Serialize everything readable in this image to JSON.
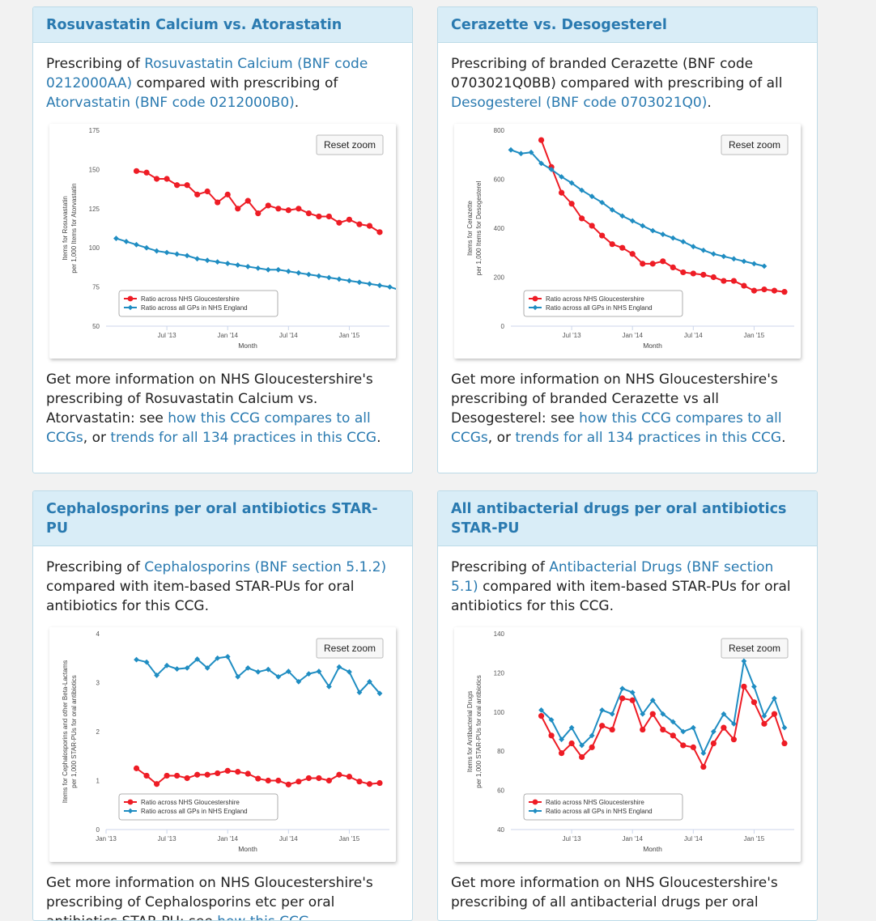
{
  "colors": {
    "ccg": "#ee1c25",
    "eng": "#1f8dc2",
    "accent": "#2a7ab0"
  },
  "panels": [
    {
      "title": "Rosuvastatin Calcium vs. Atorastatin",
      "desc": {
        "pre": "Prescribing of ",
        "link1": "Rosuvastatin Calcium (BNF code 0212000AA)",
        "mid": " compared with prescribing of ",
        "link2": "Atorvastatin (BNF code 0212000B0)",
        "post": "."
      },
      "more": {
        "pre": "Get more information on NHS Gloucestershire's prescribing of Rosuvastatin Calcium vs. Atorvastatin: see ",
        "link1": "how this CCG compares to all CCGs",
        "mid": ", or ",
        "link2": "trends for all 134 practices in this CCG",
        "post": "."
      },
      "reset_label": "Reset zoom"
    },
    {
      "title": "Cerazette vs. Desogesterel",
      "desc": {
        "pre": "Prescribing of branded Cerazette (BNF code 0703021Q0BB) compared with prescribing of all ",
        "link1": "Desogesterel (BNF code 0703021Q0)",
        "mid": ".",
        "link2": "",
        "post": ""
      },
      "more": {
        "pre": "Get more information on NHS Gloucestershire's prescribing of branded Cerazette vs all Desogesterel: see ",
        "link1": "how this CCG compares to all CCGs",
        "mid": ", or ",
        "link2": "trends for all 134 practices in this CCG",
        "post": "."
      },
      "reset_label": "Reset zoom"
    },
    {
      "title": "Cephalosporins per oral antibiotics STAR-PU",
      "desc": {
        "pre": "Prescribing of ",
        "link1": "Cephalosporins (BNF section 5.1.2)",
        "mid": " compared with item-based STAR-PUs for oral antibiotics for this CCG.",
        "link2": "",
        "post": ""
      },
      "more": {
        "pre": "Get more information on NHS Gloucestershire's prescribing of Cephalosporins etc per oral antibiotics STAR-PU: see ",
        "link1": "how this CCG",
        "mid": "",
        "link2": "",
        "post": ""
      },
      "reset_label": "Reset zoom"
    },
    {
      "title": "All antibacterial drugs per oral antibiotics STAR-PU",
      "desc": {
        "pre": "Prescribing of ",
        "link1": "Antibacterial Drugs (BNF section 5.1)",
        "mid": " compared with item-based STAR-PUs for oral antibiotics for this CCG.",
        "link2": "",
        "post": ""
      },
      "more": {
        "pre": "Get more information on NHS Gloucestershire's prescribing of all antibacterial drugs per oral",
        "link1": "",
        "mid": "",
        "link2": "",
        "post": ""
      },
      "reset_label": "Reset zoom"
    }
  ],
  "chart_data": [
    {
      "type": "line",
      "xlabel": "Month",
      "ylabel": [
        "Items for Rosuvastatin",
        "per 1,000 Items for Atorvastatin"
      ],
      "ylim": [
        50,
        175
      ],
      "yticks": [
        50,
        75,
        100,
        125,
        150,
        175
      ],
      "xlim": [
        2013.0,
        2015.33
      ],
      "xticks": [
        {
          "v": 2013.5,
          "label": "Jul '13"
        },
        {
          "v": 2014.0,
          "label": "Jan '14"
        },
        {
          "v": 2014.5,
          "label": "Jul '14"
        },
        {
          "v": 2015.0,
          "label": "Jan '15"
        }
      ],
      "x_start": 2013.083,
      "legend_position": "bottom-left",
      "series": [
        {
          "name": "Ratio across NHS Gloucestershire",
          "color": "#ee1c25",
          "start": 2013.25,
          "values": [
            149,
            148,
            144,
            144,
            140,
            140,
            134,
            136,
            129,
            134,
            125,
            130,
            122,
            127,
            125,
            124,
            125,
            122,
            120,
            120,
            116,
            118,
            115,
            114,
            110
          ]
        },
        {
          "name": "Ratio across all GPs in NHS England",
          "color": "#1f8dc2",
          "start": 2013.083,
          "values": [
            106,
            104,
            102,
            100,
            98,
            97,
            96,
            95,
            93,
            92,
            91,
            90,
            89,
            88,
            87,
            86,
            86,
            85,
            84,
            83,
            82,
            81,
            80,
            79,
            78,
            77,
            76,
            75,
            73
          ]
        }
      ]
    },
    {
      "type": "line",
      "xlabel": "Month",
      "ylabel": [
        "Items for Cerazette",
        "per 1,000 Items for Desogesterel"
      ],
      "ylim": [
        0,
        800
      ],
      "yticks": [
        0,
        200,
        400,
        600,
        800
      ],
      "xlim": [
        2013.0,
        2015.33
      ],
      "xticks": [
        {
          "v": 2013.5,
          "label": "Jul '13"
        },
        {
          "v": 2014.0,
          "label": "Jan '14"
        },
        {
          "v": 2014.5,
          "label": "Jul '14"
        },
        {
          "v": 2015.0,
          "label": "Jan '15"
        }
      ],
      "legend_position": "bottom-left",
      "series": [
        {
          "name": "Ratio across NHS Gloucestershire",
          "color": "#ee1c25",
          "start": 2013.25,
          "values": [
            760,
            650,
            545,
            500,
            440,
            410,
            370,
            335,
            320,
            295,
            255,
            255,
            265,
            240,
            220,
            215,
            210,
            200,
            185,
            185,
            165,
            145,
            150,
            145,
            140
          ]
        },
        {
          "name": "Ratio across all GPs in NHS England",
          "color": "#1f8dc2",
          "start": 2013.0,
          "values": [
            720,
            705,
            710,
            665,
            640,
            610,
            585,
            555,
            530,
            505,
            475,
            450,
            430,
            410,
            390,
            375,
            360,
            345,
            325,
            310,
            295,
            285,
            275,
            265,
            255,
            245
          ]
        }
      ]
    },
    {
      "type": "line",
      "xlabel": "Month",
      "ylabel": [
        "Items for Cephalosporins and other Beta-Lactams",
        "per 1,000 STAR-PUs for oral antibiotics"
      ],
      "ylim": [
        0,
        4
      ],
      "yticks": [
        0,
        1,
        2,
        3,
        4
      ],
      "xlim": [
        2013.0,
        2015.33
      ],
      "xticks": [
        {
          "v": 2013.0,
          "label": "Jan '13"
        },
        {
          "v": 2013.5,
          "label": "Jul '13"
        },
        {
          "v": 2014.0,
          "label": "Jan '14"
        },
        {
          "v": 2014.5,
          "label": "Jul '14"
        },
        {
          "v": 2015.0,
          "label": "Jan '15"
        }
      ],
      "legend_position": "bottom-left",
      "series": [
        {
          "name": "Ratio across NHS Gloucestershire",
          "color": "#ee1c25",
          "start": 2013.25,
          "values": [
            1.25,
            1.1,
            0.93,
            1.1,
            1.1,
            1.05,
            1.12,
            1.12,
            1.15,
            1.2,
            1.18,
            1.14,
            1.04,
            1.0,
            1.0,
            0.92,
            0.98,
            1.05,
            1.05,
            1.0,
            1.12,
            1.08,
            0.98,
            0.93,
            0.95
          ]
        },
        {
          "name": "Ratio across all GPs in NHS England",
          "color": "#1f8dc2",
          "start": 2013.25,
          "values": [
            3.47,
            3.42,
            3.15,
            3.35,
            3.28,
            3.3,
            3.48,
            3.3,
            3.5,
            3.53,
            3.12,
            3.3,
            3.22,
            3.27,
            3.12,
            3.23,
            3.02,
            3.18,
            3.23,
            2.92,
            3.32,
            3.22,
            2.8,
            3.02,
            2.78
          ]
        }
      ]
    },
    {
      "type": "line",
      "xlabel": "Month",
      "ylabel": [
        "Items for Antibacterial Drugs",
        "per 1,000 STAR-PUs for oral antibiotics"
      ],
      "ylim": [
        40,
        140
      ],
      "yticks": [
        40,
        60,
        80,
        100,
        120,
        140
      ],
      "xlim": [
        2013.0,
        2015.33
      ],
      "xticks": [
        {
          "v": 2013.5,
          "label": "Jul '13"
        },
        {
          "v": 2014.0,
          "label": "Jan '14"
        },
        {
          "v": 2014.5,
          "label": "Jul '14"
        },
        {
          "v": 2015.0,
          "label": "Jan '15"
        }
      ],
      "legend_position": "bottom-left",
      "series": [
        {
          "name": "Ratio across NHS Gloucestershire",
          "color": "#ee1c25",
          "start": 2013.25,
          "values": [
            98,
            88,
            79,
            84,
            77,
            82,
            93,
            91,
            107,
            106,
            91,
            99,
            91,
            88,
            83,
            82,
            72,
            84,
            92,
            86,
            113,
            105,
            94,
            99,
            84
          ]
        },
        {
          "name": "Ratio across all GPs in NHS England",
          "color": "#1f8dc2",
          "start": 2013.25,
          "values": [
            101,
            96,
            86,
            92,
            83,
            88,
            101,
            99,
            112,
            110,
            99,
            106,
            99,
            95,
            90,
            92,
            79,
            90,
            99,
            94,
            126,
            113,
            98,
            107,
            92
          ]
        }
      ]
    }
  ]
}
